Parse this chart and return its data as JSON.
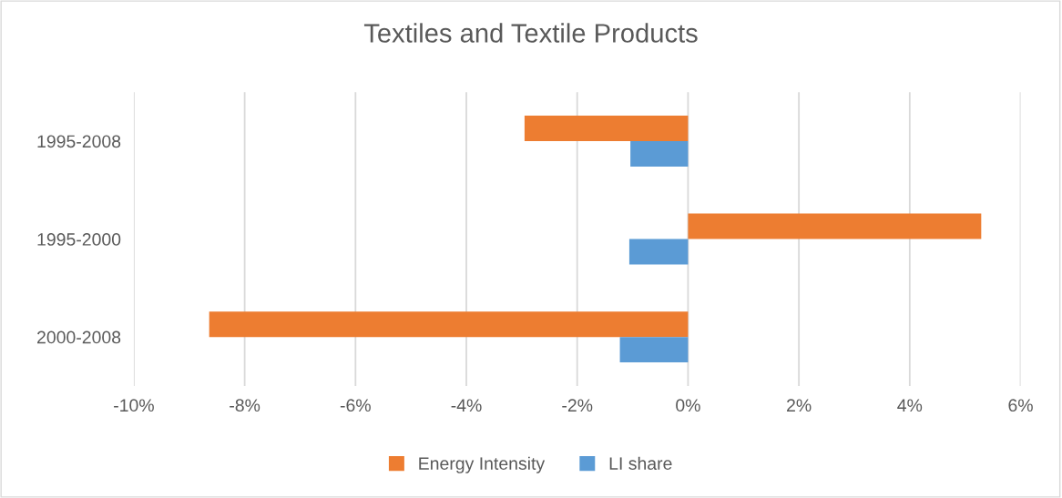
{
  "chart_data": {
    "type": "bar",
    "orientation": "horizontal",
    "title": "Textiles and Textile Products",
    "categories": [
      "1995-2008",
      "1995-2000",
      "2000-2008"
    ],
    "series": [
      {
        "name": "Energy Intensity",
        "color": "#ed7d31",
        "values": [
          -2.95,
          5.29,
          -8.64
        ]
      },
      {
        "name": "LI share",
        "color": "#5b9bd5",
        "values": [
          -1.04,
          -1.06,
          -1.23
        ]
      }
    ],
    "xlim": [
      -10,
      6
    ],
    "xticks": [
      {
        "value": -10,
        "label": "-10%"
      },
      {
        "value": -8,
        "label": "-8%"
      },
      {
        "value": -6,
        "label": "-6%"
      },
      {
        "value": -4,
        "label": "-4%"
      },
      {
        "value": -2,
        "label": "-2%"
      },
      {
        "value": 0,
        "label": "0%"
      },
      {
        "value": 2,
        "label": "2%"
      },
      {
        "value": 4,
        "label": "4%"
      },
      {
        "value": 6,
        "label": "6%"
      }
    ],
    "grid": "x",
    "legend": "bottom"
  }
}
